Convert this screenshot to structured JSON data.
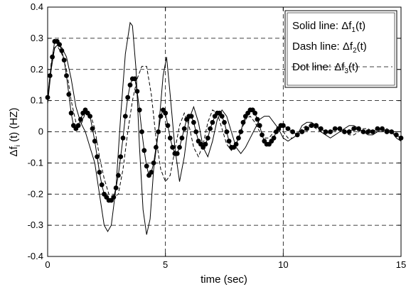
{
  "chart_data": {
    "type": "line",
    "xlabel": "time (sec)",
    "ylabel": {
      "prefix": "Δf",
      "sub": "i",
      "suffix": " (t) (HZ)"
    },
    "xlim": [
      0,
      15
    ],
    "ylim": [
      -0.4,
      0.4
    ],
    "xticks": [
      0,
      5,
      10,
      15
    ],
    "yticks": [
      -0.4,
      -0.3,
      -0.2,
      -0.1,
      0,
      0.1,
      0.2,
      0.3,
      0.4
    ],
    "grid": "dashed",
    "legend_position": "top-right",
    "legend": [
      {
        "text_prefix": "Solid line: Δf",
        "sub": "1",
        "text_suffix": "(t)",
        "style": "solid"
      },
      {
        "text_prefix": "Dash line: Δf",
        "sub": "2",
        "text_suffix": "(t)",
        "style": "dash"
      },
      {
        "text_prefix": "Dot line: Δf",
        "sub": "3",
        "text_suffix": "(t)",
        "style": "dot"
      }
    ],
    "series": [
      {
        "name": "Δf1(t)",
        "style": "solid",
        "x": [
          0,
          0.15,
          0.3,
          0.45,
          0.6,
          0.8,
          1.0,
          1.2,
          1.4,
          1.6,
          1.8,
          2.0,
          2.2,
          2.4,
          2.55,
          2.7,
          2.9,
          3.1,
          3.3,
          3.5,
          3.6,
          3.75,
          3.9,
          4.05,
          4.2,
          4.35,
          4.5,
          4.7,
          4.9,
          5.05,
          5.2,
          5.4,
          5.6,
          5.8,
          6.0,
          6.2,
          6.4,
          6.6,
          6.8,
          7.0,
          7.2,
          7.4,
          7.6,
          7.8,
          8.0,
          8.2,
          8.4,
          8.6,
          8.8,
          9.0,
          9.2,
          9.4,
          9.6,
          9.8,
          10.0,
          10.2,
          10.4,
          10.6,
          10.8,
          11.0,
          11.2,
          11.4,
          11.6,
          11.8,
          12.0,
          12.2,
          12.4,
          12.6,
          12.8,
          13.0,
          13.2,
          13.4,
          13.6,
          13.8,
          14.0,
          14.2,
          14.4,
          14.6,
          14.8,
          15.0
        ],
        "y": [
          0.09,
          0.2,
          0.27,
          0.28,
          0.27,
          0.24,
          0.17,
          0.08,
          0.03,
          0.0,
          -0.05,
          -0.1,
          -0.2,
          -0.3,
          -0.32,
          -0.3,
          -0.18,
          0.05,
          0.25,
          0.35,
          0.34,
          0.2,
          -0.05,
          -0.25,
          -0.33,
          -0.28,
          -0.12,
          0.0,
          0.18,
          0.24,
          0.12,
          -0.05,
          -0.16,
          -0.08,
          0.04,
          0.08,
          0.03,
          -0.05,
          -0.08,
          -0.03,
          0.04,
          0.07,
          0.05,
          0.0,
          -0.05,
          -0.07,
          -0.05,
          -0.02,
          0.01,
          0.04,
          0.05,
          0.05,
          0.03,
          0.01,
          -0.02,
          -0.03,
          -0.02,
          -0.01,
          0.02,
          0.03,
          0.03,
          0.02,
          0.0,
          -0.01,
          -0.02,
          -0.01,
          0.0,
          0.01,
          0.02,
          0.02,
          0.01,
          0.0,
          -0.01,
          -0.01,
          0.0,
          0.0,
          0.01,
          0.0,
          -0.02,
          -0.03
        ]
      },
      {
        "name": "Δf2(t)",
        "style": "dash",
        "x": [
          0,
          0.15,
          0.3,
          0.45,
          0.6,
          0.8,
          1.0,
          1.2,
          1.4,
          1.6,
          1.8,
          2.0,
          2.2,
          2.4,
          2.6,
          2.8,
          3.0,
          3.2,
          3.4,
          3.6,
          3.8,
          4.0,
          4.2,
          4.4,
          4.6,
          4.8,
          5.0,
          5.2,
          5.4,
          5.6,
          5.8,
          6.0,
          6.2,
          6.4,
          6.6,
          6.8,
          7.0,
          7.2,
          7.4,
          7.6,
          7.8,
          8.0,
          8.2,
          8.4,
          8.6,
          8.8,
          9.0,
          9.2,
          9.4,
          9.6,
          9.8,
          10.0,
          10.2,
          10.4,
          10.6,
          10.8,
          11.0,
          11.2,
          11.4,
          11.6,
          11.8,
          12.0,
          12.2,
          12.4,
          12.6,
          12.8,
          13.0,
          13.2,
          13.4,
          13.6,
          13.8,
          14.0,
          14.2,
          14.4,
          14.6,
          14.8,
          15.0
        ],
        "y": [
          0.1,
          0.22,
          0.27,
          0.27,
          0.25,
          0.2,
          0.1,
          0.03,
          0.02,
          0.06,
          0.06,
          0.01,
          -0.08,
          -0.15,
          -0.2,
          -0.21,
          -0.2,
          -0.12,
          0.0,
          0.1,
          0.17,
          0.21,
          0.21,
          0.12,
          -0.02,
          -0.12,
          -0.16,
          -0.14,
          -0.06,
          0.02,
          0.06,
          0.02,
          -0.05,
          -0.08,
          -0.04,
          0.03,
          0.07,
          0.06,
          0.01,
          -0.04,
          -0.06,
          -0.04,
          0.0,
          0.04,
          0.05,
          0.03,
          0.0,
          -0.02,
          -0.02,
          0.0,
          0.01,
          0.0,
          -0.02,
          -0.02,
          -0.01,
          0.01,
          0.02,
          0.02,
          0.01,
          0.0,
          -0.01,
          0.0,
          0.01,
          0.01,
          0.0,
          -0.01,
          -0.01,
          0.0,
          0.01,
          0.01,
          0.0,
          0.0,
          0.01,
          0.0,
          0.0,
          0.0,
          0.0
        ]
      },
      {
        "name": "Δf3(t)",
        "style": "dot",
        "x": [
          0,
          0.1,
          0.2,
          0.3,
          0.4,
          0.5,
          0.6,
          0.7,
          0.8,
          0.9,
          1.0,
          1.1,
          1.2,
          1.3,
          1.4,
          1.5,
          1.6,
          1.7,
          1.8,
          1.9,
          2.0,
          2.1,
          2.2,
          2.3,
          2.4,
          2.5,
          2.6,
          2.7,
          2.8,
          2.9,
          3.0,
          3.1,
          3.2,
          3.3,
          3.4,
          3.5,
          3.6,
          3.7,
          3.8,
          3.9,
          4.0,
          4.1,
          4.2,
          4.3,
          4.4,
          4.5,
          4.6,
          4.7,
          4.8,
          4.9,
          5.0,
          5.1,
          5.2,
          5.3,
          5.4,
          5.5,
          5.6,
          5.7,
          5.8,
          5.9,
          6.0,
          6.1,
          6.2,
          6.3,
          6.4,
          6.5,
          6.6,
          6.7,
          6.8,
          6.9,
          7.0,
          7.1,
          7.2,
          7.3,
          7.4,
          7.5,
          7.6,
          7.7,
          7.8,
          7.9,
          8.0,
          8.1,
          8.2,
          8.3,
          8.4,
          8.5,
          8.6,
          8.7,
          8.8,
          8.9,
          9.0,
          9.1,
          9.2,
          9.3,
          9.4,
          9.5,
          9.6,
          9.7,
          9.8,
          9.9,
          10.0,
          10.2,
          10.4,
          10.6,
          10.8,
          11.0,
          11.2,
          11.4,
          11.6,
          11.8,
          12.0,
          12.2,
          12.4,
          12.6,
          12.8,
          13.0,
          13.2,
          13.4,
          13.6,
          13.8,
          14.0,
          14.2,
          14.4,
          14.6,
          14.8,
          15.0
        ],
        "y": [
          0.11,
          0.18,
          0.24,
          0.29,
          0.29,
          0.28,
          0.26,
          0.23,
          0.18,
          0.12,
          0.06,
          0.02,
          0.01,
          0.02,
          0.04,
          0.06,
          0.07,
          0.06,
          0.05,
          0.01,
          -0.03,
          -0.08,
          -0.13,
          -0.17,
          -0.2,
          -0.21,
          -0.22,
          -0.22,
          -0.21,
          -0.18,
          -0.14,
          -0.08,
          -0.02,
          0.05,
          0.11,
          0.15,
          0.17,
          0.17,
          0.13,
          0.07,
          0.0,
          -0.06,
          -0.11,
          -0.14,
          -0.13,
          -0.1,
          -0.05,
          0.0,
          0.05,
          0.07,
          0.06,
          0.02,
          -0.02,
          -0.05,
          -0.07,
          -0.07,
          -0.05,
          -0.02,
          0.01,
          0.04,
          0.05,
          0.05,
          0.03,
          0.0,
          -0.03,
          -0.04,
          -0.05,
          -0.04,
          -0.02,
          0.01,
          0.03,
          0.05,
          0.06,
          0.06,
          0.05,
          0.03,
          0.0,
          -0.03,
          -0.05,
          -0.05,
          -0.04,
          -0.02,
          0.0,
          0.03,
          0.05,
          0.06,
          0.07,
          0.07,
          0.06,
          0.04,
          0.02,
          -0.01,
          -0.03,
          -0.04,
          -0.04,
          -0.03,
          -0.02,
          0.0,
          0.01,
          0.02,
          0.02,
          0.01,
          0.0,
          -0.01,
          0.0,
          0.01,
          0.02,
          0.02,
          0.01,
          0.0,
          0.0,
          0.01,
          0.01,
          0.0,
          0.0,
          0.01,
          0.01,
          0.0,
          0.0,
          0.0,
          0.01,
          0.01,
          0.0,
          0.0,
          -0.01,
          -0.02
        ]
      }
    ]
  }
}
